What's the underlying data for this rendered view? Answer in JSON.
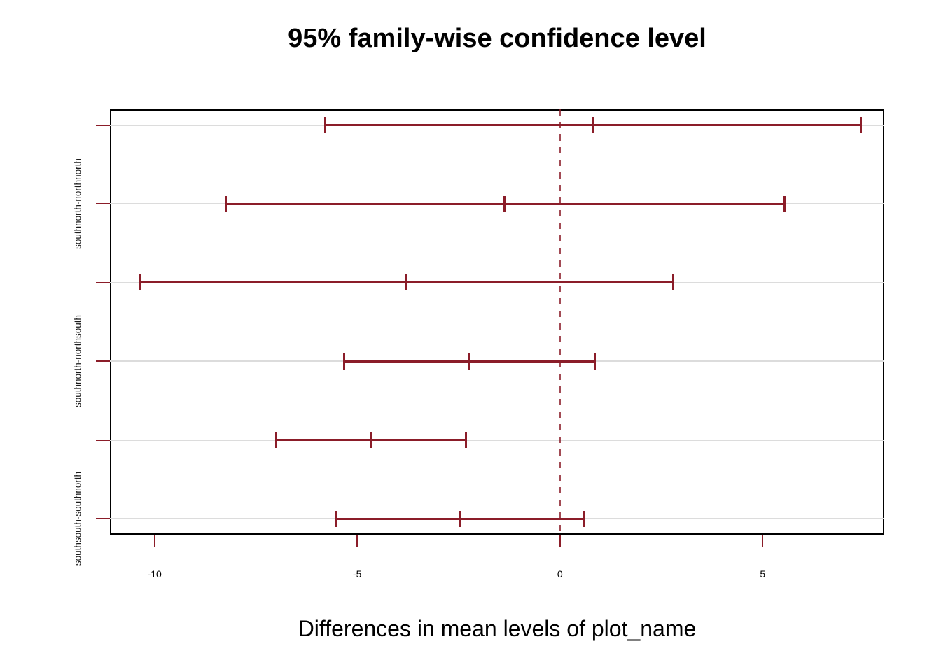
{
  "chart_data": {
    "type": "errorbar",
    "title": "95% family-wise confidence level",
    "xlabel": "Differences in mean levels of plot_name",
    "conf_level_pct": 95,
    "orientation": "horizontal",
    "x_ticks": [
      -10,
      -5,
      0,
      5
    ],
    "xlim": [
      -11.1,
      8.0
    ],
    "zero_line_x": 0,
    "zero_line_style": "dashed",
    "grid": "light-horizontal-row-lines",
    "legend": "none",
    "comparisons": [
      {
        "axis_label": "",
        "lwr": -5.79,
        "center": 0.83,
        "upr": 7.43
      },
      {
        "axis_label": "southnorth-northnorth",
        "lwr": -8.25,
        "center": -1.37,
        "upr": 5.54
      },
      {
        "axis_label": "",
        "lwr": -10.37,
        "center": -3.78,
        "upr": 2.8
      },
      {
        "axis_label": "southnorth-northsouth",
        "lwr": -5.32,
        "center": -2.23,
        "upr": 0.86
      },
      {
        "axis_label": "",
        "lwr": -6.99,
        "center": -4.65,
        "upr": -2.31
      },
      {
        "axis_label": "southsouth-southnorth",
        "lwr": -5.52,
        "center": -2.47,
        "upr": 0.59
      }
    ],
    "colors": {
      "interval": "#8B1D29",
      "zero_line": "#8B1D29",
      "gridline": "#DCDCDC",
      "axis_tick": "#8B1D29",
      "box_border": "#000000",
      "text": "#000000"
    }
  }
}
